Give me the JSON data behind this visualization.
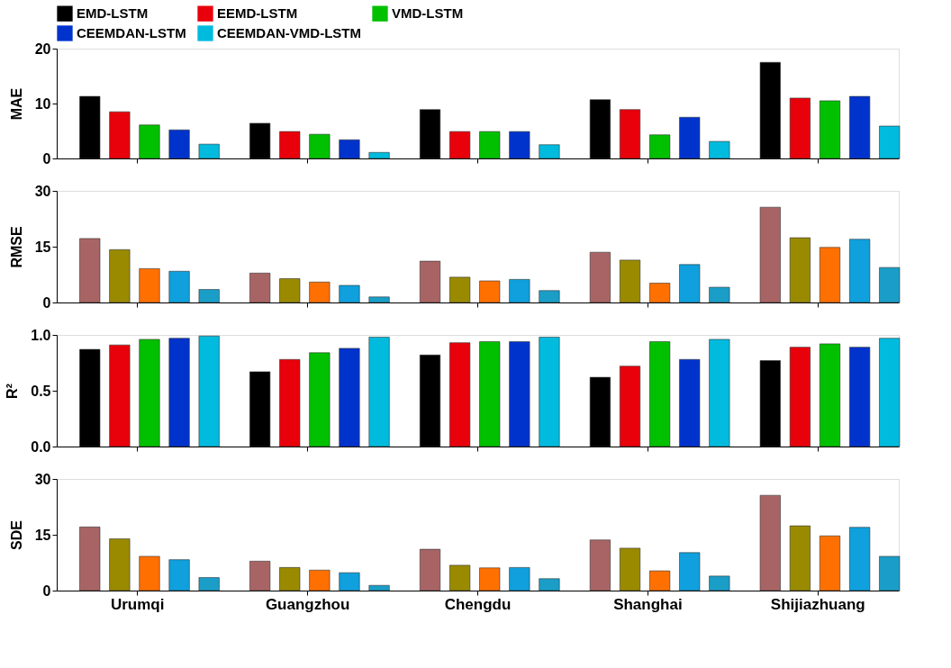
{
  "chart_data": [
    {
      "type": "bar",
      "ylabel": "MAE",
      "categories": [
        null,
        null,
        null,
        null,
        null
      ],
      "ylim": [
        0,
        20
      ],
      "yticks": [
        0,
        10,
        20
      ],
      "tick_labels": "y",
      "legend": "top",
      "series": [
        {
          "name": "EMD-LSTM",
          "color": "#000000",
          "values": [
            11.3,
            6.4,
            8.9,
            10.7,
            17.5
          ]
        },
        {
          "name": "EEMD-LSTM",
          "color": "#e8000b",
          "values": [
            8.5,
            4.9,
            4.9,
            8.9,
            11.0
          ]
        },
        {
          "name": "VMD-LSTM",
          "color": "#00c000",
          "values": [
            6.1,
            4.4,
            4.9,
            4.3,
            10.5
          ]
        },
        {
          "name": "CEEMDAN-LSTM",
          "color": "#0033cc",
          "values": [
            5.2,
            3.4,
            4.9,
            7.5,
            11.3
          ]
        },
        {
          "name": "CEEMDAN-VMD-LSTM",
          "color": "#00bbdd",
          "values": [
            2.6,
            1.1,
            2.5,
            3.1,
            5.9
          ]
        }
      ]
    },
    {
      "type": "bar",
      "ylabel": "RMSE",
      "categories": [
        null,
        null,
        null,
        null,
        null
      ],
      "ylim": [
        0,
        30
      ],
      "yticks": [
        0,
        15,
        30
      ],
      "tick_labels": "y",
      "series": [
        {
          "color": "#a86464",
          "values": [
            17.2,
            7.9,
            11.1,
            13.5,
            25.6
          ]
        },
        {
          "color": "#9a8a00",
          "values": [
            14.2,
            6.4,
            6.8,
            11.4,
            17.4
          ]
        },
        {
          "color": "#ff7000",
          "values": [
            9.1,
            5.5,
            5.8,
            5.2,
            14.8
          ]
        },
        {
          "color": "#0fa0dd",
          "values": [
            8.4,
            4.6,
            6.2,
            10.2,
            17.0
          ]
        },
        {
          "color": "#1a9ec8",
          "values": [
            3.5,
            1.5,
            3.2,
            4.1,
            9.4
          ]
        }
      ]
    },
    {
      "type": "bar",
      "ylabel": "R²",
      "categories": [
        null,
        null,
        null,
        null,
        null
      ],
      "ylim": [
        0,
        1.0
      ],
      "yticks": [
        {
          "value": 0,
          "label": "0.0"
        },
        0.5,
        {
          "value": 1,
          "label": "1.0"
        }
      ],
      "tick_labels": "y",
      "series": [
        {
          "color": "#000000",
          "values": [
            0.87,
            0.67,
            0.82,
            0.62,
            0.77
          ]
        },
        {
          "color": "#e8000b",
          "values": [
            0.91,
            0.78,
            0.93,
            0.72,
            0.89
          ]
        },
        {
          "color": "#00c000",
          "values": [
            0.96,
            0.84,
            0.94,
            0.94,
            0.92
          ]
        },
        {
          "color": "#0033cc",
          "values": [
            0.97,
            0.88,
            0.94,
            0.78,
            0.89
          ]
        },
        {
          "color": "#00bbdd",
          "values": [
            0.99,
            0.98,
            0.98,
            0.96,
            0.97
          ]
        }
      ]
    },
    {
      "type": "bar",
      "ylabel": "SDE",
      "categories": [
        "Urumqi",
        "Guangzhou",
        "Chengdu",
        "Shanghai",
        "Shijiazhuang"
      ],
      "ylim": [
        0,
        30
      ],
      "yticks": [
        0,
        15,
        30
      ],
      "series": [
        {
          "color": "#a86464",
          "values": [
            17.1,
            7.9,
            11.1,
            13.6,
            25.6
          ]
        },
        {
          "color": "#9a8a00",
          "values": [
            13.9,
            6.2,
            6.8,
            11.4,
            17.4
          ]
        },
        {
          "color": "#ff7000",
          "values": [
            9.2,
            5.5,
            6.1,
            5.3,
            14.7
          ]
        },
        {
          "color": "#0fa0dd",
          "values": [
            8.3,
            4.8,
            6.2,
            10.2,
            17.0
          ]
        },
        {
          "color": "#1a9ec8",
          "values": [
            3.5,
            1.4,
            3.2,
            3.9,
            9.2
          ]
        }
      ]
    }
  ]
}
